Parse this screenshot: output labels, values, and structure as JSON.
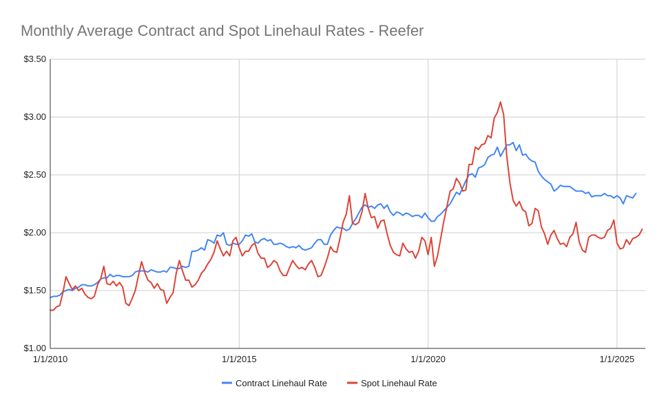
{
  "chart_data": {
    "type": "line",
    "title": "Monthly Average Contract and Spot Linehaul Rates - Reefer",
    "xlabel": "",
    "ylabel": "",
    "x_start": "2010-01",
    "x_range": [
      2010.0,
      2025.75
    ],
    "ylim": [
      1.0,
      3.5
    ],
    "y_ticks": [
      {
        "value": 1.0,
        "label": "$1.00"
      },
      {
        "value": 1.5,
        "label": "$1.50"
      },
      {
        "value": 2.0,
        "label": "$2.00"
      },
      {
        "value": 2.5,
        "label": "$2.50"
      },
      {
        "value": 3.0,
        "label": "$3.00"
      },
      {
        "value": 3.5,
        "label": "$3.50"
      }
    ],
    "x_ticks": [
      {
        "value": 2010,
        "label": "1/1/2010"
      },
      {
        "value": 2015,
        "label": "1/1/2015"
      },
      {
        "value": 2020,
        "label": "1/1/2020"
      },
      {
        "value": 2025,
        "label": "1/1/2025"
      }
    ],
    "grid": true,
    "legend_position": "bottom",
    "series": [
      {
        "name": "Contract Linehaul Rate",
        "color": "#4285f4",
        "values": [
          1.44,
          1.45,
          1.45,
          1.46,
          1.49,
          1.5,
          1.51,
          1.5,
          1.52,
          1.53,
          1.55,
          1.55,
          1.54,
          1.54,
          1.55,
          1.57,
          1.6,
          1.61,
          1.61,
          1.64,
          1.62,
          1.63,
          1.63,
          1.62,
          1.62,
          1.62,
          1.63,
          1.66,
          1.67,
          1.67,
          1.67,
          1.66,
          1.68,
          1.67,
          1.66,
          1.66,
          1.67,
          1.66,
          1.7,
          1.7,
          1.69,
          1.69,
          1.71,
          1.7,
          1.71,
          1.84,
          1.84,
          1.85,
          1.87,
          1.85,
          1.94,
          1.93,
          1.91,
          1.98,
          1.97,
          2.0,
          1.9,
          1.89,
          1.91,
          1.9,
          1.9,
          1.93,
          1.98,
          1.97,
          1.99,
          1.92,
          1.91,
          1.94,
          1.95,
          1.93,
          1.94,
          1.9,
          1.9,
          1.91,
          1.9,
          1.88,
          1.87,
          1.88,
          1.87,
          1.89,
          1.86,
          1.85,
          1.86,
          1.87,
          1.91,
          1.94,
          1.94,
          1.9,
          1.9,
          1.98,
          2.02,
          2.05,
          2.04,
          2.04,
          2.02,
          2.03,
          2.08,
          2.12,
          2.17,
          2.22,
          2.24,
          2.22,
          2.23,
          2.21,
          2.24,
          2.25,
          2.21,
          2.24,
          2.18,
          2.15,
          2.18,
          2.17,
          2.15,
          2.17,
          2.16,
          2.14,
          2.15,
          2.15,
          2.13,
          2.17,
          2.13,
          2.1,
          2.1,
          2.14,
          2.16,
          2.19,
          2.22,
          2.25,
          2.3,
          2.35,
          2.33,
          2.39,
          2.45,
          2.5,
          2.51,
          2.48,
          2.56,
          2.57,
          2.59,
          2.65,
          2.67,
          2.68,
          2.74,
          2.66,
          2.71,
          2.76,
          2.76,
          2.78,
          2.71,
          2.76,
          2.67,
          2.68,
          2.64,
          2.62,
          2.61,
          2.53,
          2.49,
          2.46,
          2.44,
          2.42,
          2.36,
          2.38,
          2.41,
          2.4,
          2.4,
          2.4,
          2.38,
          2.36,
          2.36,
          2.36,
          2.34,
          2.35,
          2.31,
          2.32,
          2.32,
          2.32,
          2.34,
          2.32,
          2.32,
          2.3,
          2.32,
          2.3,
          2.25,
          2.32,
          2.31,
          2.3,
          2.34
        ]
      },
      {
        "name": "Spot Linehaul Rate",
        "color": "#db4437",
        "values": [
          1.33,
          1.33,
          1.36,
          1.37,
          1.48,
          1.62,
          1.56,
          1.51,
          1.54,
          1.5,
          1.52,
          1.47,
          1.44,
          1.43,
          1.45,
          1.55,
          1.6,
          1.71,
          1.56,
          1.55,
          1.58,
          1.54,
          1.57,
          1.53,
          1.39,
          1.37,
          1.43,
          1.5,
          1.63,
          1.75,
          1.66,
          1.59,
          1.57,
          1.52,
          1.56,
          1.51,
          1.5,
          1.39,
          1.44,
          1.48,
          1.65,
          1.76,
          1.67,
          1.59,
          1.59,
          1.53,
          1.55,
          1.59,
          1.65,
          1.68,
          1.73,
          1.77,
          1.83,
          1.93,
          1.86,
          1.8,
          1.84,
          1.8,
          1.93,
          1.96,
          1.87,
          1.8,
          1.84,
          1.84,
          1.89,
          1.91,
          1.82,
          1.78,
          1.78,
          1.7,
          1.72,
          1.76,
          1.74,
          1.67,
          1.63,
          1.63,
          1.7,
          1.76,
          1.72,
          1.69,
          1.7,
          1.68,
          1.73,
          1.76,
          1.7,
          1.62,
          1.63,
          1.7,
          1.78,
          1.88,
          1.84,
          1.83,
          1.95,
          2.09,
          2.16,
          2.32,
          2.08,
          2.07,
          2.09,
          2.18,
          2.34,
          2.21,
          2.13,
          2.14,
          2.04,
          2.1,
          2.11,
          1.99,
          1.89,
          1.83,
          1.81,
          1.8,
          1.91,
          1.86,
          1.83,
          1.84,
          1.78,
          1.84,
          1.96,
          1.93,
          1.81,
          1.96,
          1.71,
          1.8,
          1.95,
          2.1,
          2.23,
          2.36,
          2.38,
          2.47,
          2.43,
          2.36,
          2.37,
          2.59,
          2.59,
          2.74,
          2.72,
          2.76,
          2.77,
          2.84,
          2.82,
          2.99,
          3.04,
          3.13,
          3.02,
          2.66,
          2.43,
          2.28,
          2.23,
          2.27,
          2.2,
          2.18,
          2.06,
          2.08,
          2.21,
          2.19,
          2.05,
          1.99,
          1.9,
          1.98,
          2.02,
          1.95,
          1.9,
          1.91,
          1.88,
          1.96,
          1.99,
          2.09,
          1.92,
          1.85,
          1.83,
          1.96,
          1.98,
          1.98,
          1.96,
          1.95,
          1.96,
          2.02,
          2.04,
          2.11,
          1.91,
          1.86,
          1.87,
          1.94,
          1.9,
          1.95,
          1.96,
          1.98,
          2.03
        ]
      }
    ]
  }
}
